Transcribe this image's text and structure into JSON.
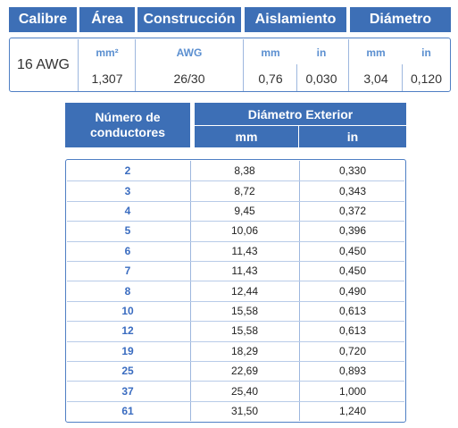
{
  "top_table": {
    "headers": [
      "Calibre",
      "Área",
      "Construcción",
      "Aislamiento",
      "Diámetro"
    ],
    "units": [
      "mm²",
      "AWG",
      "mm",
      "in",
      "mm",
      "in"
    ],
    "row": [
      "16 AWG",
      "1,307",
      "26/30",
      "0,76",
      "0,030",
      "3,04",
      "0,120"
    ]
  },
  "table": {
    "header": {
      "first": "Número de conductores",
      "group": "Diámetro Exterior",
      "units": [
        "mm",
        "in"
      ]
    },
    "rows": [
      [
        "2",
        "8,38",
        "0,330"
      ],
      [
        "3",
        "8,72",
        "0,343"
      ],
      [
        "4",
        "9,45",
        "0,372"
      ],
      [
        "5",
        "10,06",
        "0,396"
      ],
      [
        "6",
        "11,43",
        "0,450"
      ],
      [
        "7",
        "11,43",
        "0,450"
      ],
      [
        "8",
        "12,44",
        "0,490"
      ],
      [
        "10",
        "15,58",
        "0,613"
      ],
      [
        "12",
        "15,58",
        "0,613"
      ],
      [
        "19",
        "18,29",
        "0,720"
      ],
      [
        "25",
        "22,69",
        "0,893"
      ],
      [
        "37",
        "25,40",
        "1,000"
      ],
      [
        "61",
        "31,50",
        "1,240"
      ]
    ]
  }
}
